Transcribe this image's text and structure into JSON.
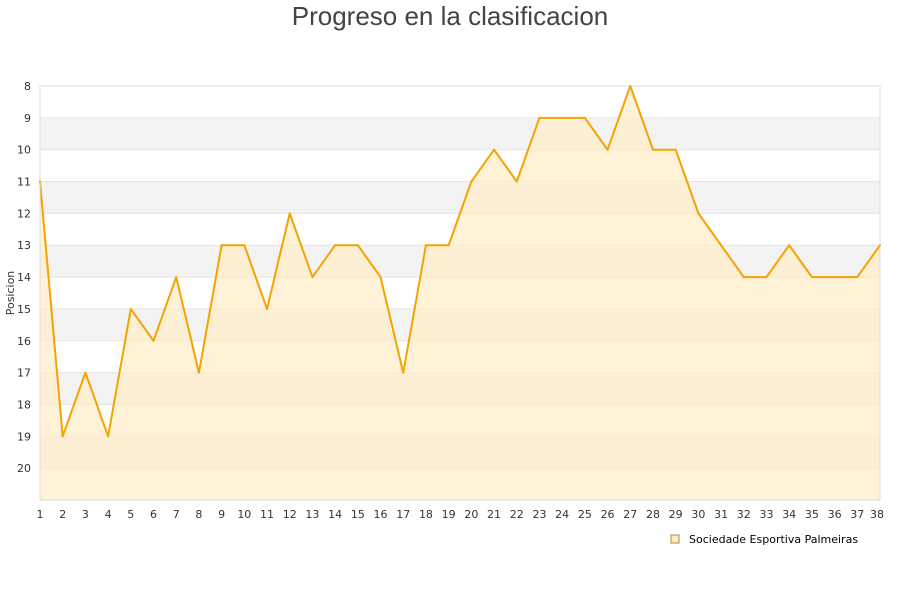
{
  "chart_data": {
    "type": "line",
    "title": "Progreso en la clasificacion",
    "ylabel": "Posicion",
    "xlabel": "",
    "x": [
      1,
      2,
      3,
      4,
      5,
      6,
      7,
      8,
      9,
      10,
      11,
      12,
      13,
      14,
      15,
      16,
      17,
      18,
      19,
      20,
      21,
      22,
      23,
      24,
      25,
      26,
      27,
      28,
      29,
      30,
      31,
      32,
      33,
      34,
      35,
      36,
      37,
      38
    ],
    "yticks": [
      8,
      9,
      10,
      11,
      12,
      13,
      14,
      15,
      16,
      17,
      18,
      19,
      20
    ],
    "ylim": [
      8,
      21
    ],
    "y_inverted": true,
    "grid": true,
    "legend_position": "bottom-right",
    "series": [
      {
        "name": "Sociedade Esportiva Palmeiras",
        "color": "#f5a300",
        "fill": "#ffedc8",
        "values": [
          11,
          19,
          17,
          19,
          15,
          16,
          14,
          17,
          13,
          13,
          15,
          12,
          14,
          13,
          13,
          14,
          17,
          13,
          13,
          11,
          10,
          11,
          9,
          9,
          9,
          10,
          8,
          10,
          10,
          12,
          13,
          14,
          14,
          13,
          14,
          14,
          14,
          13
        ]
      }
    ],
    "band_colors": [
      "#ffffff",
      "#f3f3f3",
      "#f6e5c3",
      "#ffedc8"
    ]
  }
}
